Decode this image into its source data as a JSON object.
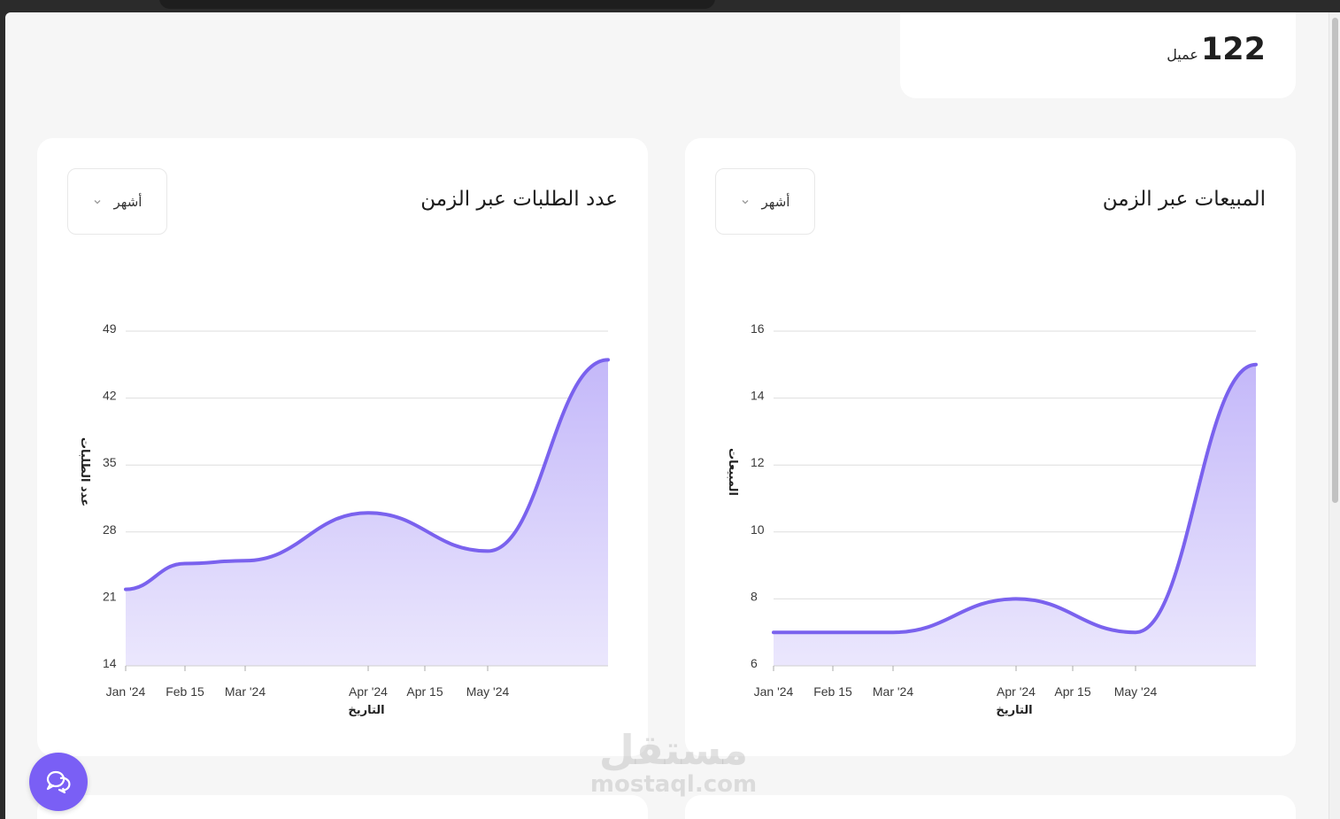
{
  "stat": {
    "value": "122",
    "unit": "عميل"
  },
  "charts": [
    {
      "title": "عدد الطلبات عبر الزمن",
      "period_label": "أشهر"
    },
    {
      "title": "المبيعات عبر الزمن",
      "period_label": "أشهر"
    }
  ],
  "chat_icon": "chat-bubbles-icon",
  "watermark": {
    "arabic": "مستقل",
    "latin": "mostaql.com"
  },
  "colors": {
    "accent": "#7a5ff5",
    "line": "#7a62ee",
    "fill_top": "#c4b8f9",
    "fill_bottom": "#ebe7fd"
  },
  "chart_data": [
    {
      "type": "area",
      "title": "عدد الطلبات عبر الزمن",
      "xlabel": "التاريخ",
      "ylabel": "عدد الطلبات",
      "x_ticks": [
        "Jan '24",
        "Feb 15",
        "Mar '24",
        "Apr '24",
        "Apr 15",
        "May '24"
      ],
      "x": [
        "2024-01-01",
        "2024-02-01",
        "2024-03-01",
        "2024-04-01",
        "2024-05-01",
        "2024-06-01"
      ],
      "values": [
        22,
        24.7,
        25,
        30,
        26,
        46
      ],
      "y_ticks": [
        14,
        21,
        28,
        35,
        42,
        49
      ],
      "ylim": [
        14,
        49
      ],
      "grid": true
    },
    {
      "type": "area",
      "title": "المبيعات عبر الزمن",
      "xlabel": "التاريخ",
      "ylabel": "المبيعات",
      "x_ticks": [
        "Jan '24",
        "Feb 15",
        "Mar '24",
        "Apr '24",
        "Apr 15",
        "May '24"
      ],
      "x": [
        "2024-01-01",
        "2024-02-01",
        "2024-03-01",
        "2024-04-01",
        "2024-05-01",
        "2024-06-01"
      ],
      "values": [
        7,
        7,
        7,
        8,
        7,
        15
      ],
      "y_ticks": [
        6,
        8,
        10,
        12,
        14,
        16
      ],
      "ylim": [
        6,
        16
      ],
      "grid": true
    }
  ]
}
